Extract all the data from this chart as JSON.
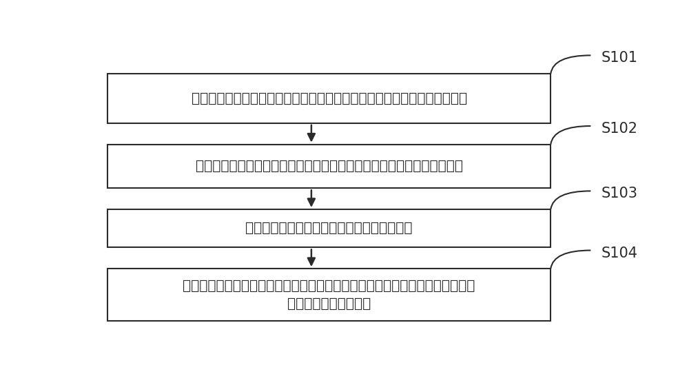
{
  "background_color": "#ffffff",
  "box_border_color": "#2b2b2b",
  "box_fill_color": "#ffffff",
  "arrow_color": "#2b2b2b",
  "text_color": "#2b2b2b",
  "steps": [
    {
      "label": "S101",
      "text": "在环境温度发生变化时，控制挡片覆盖探测器并获取所述挡片的第一灰度值",
      "multiline": false
    },
    {
      "label": "S102",
      "text": "对所述挡片的第一灰度值进行非均匀性校正，获得所述挡片的第二灰度值",
      "multiline": false
    },
    {
      "label": "S103",
      "text": "控制所述挡片复位，获取热成像目标的灰度值",
      "multiline": false
    },
    {
      "label": "S104",
      "text": "根据所述热成像目标的灰度值、所述挡片的第二灰度值及两点校正参数进行两点\n校正，获得校正灰度值",
      "multiline": true
    }
  ],
  "fig_width": 10.0,
  "fig_height": 5.33,
  "font_size": 14.5,
  "label_font_size": 15
}
